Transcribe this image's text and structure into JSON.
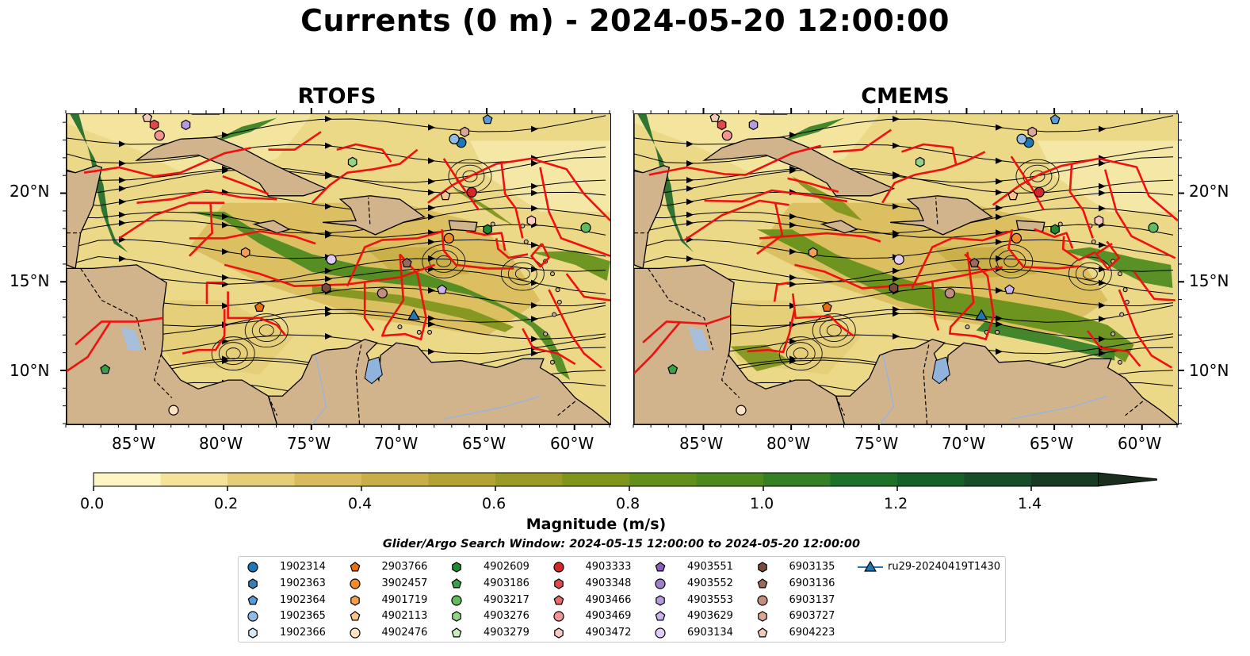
{
  "title": "Currents (0 m) - 2024-05-20 12:00:00",
  "panels": [
    {
      "title": "RTOFS"
    },
    {
      "title": "CMEMS"
    }
  ],
  "map_extent": {
    "lon": [
      -89,
      -58
    ],
    "lat": [
      7,
      24.5
    ]
  },
  "lat_ticks": [
    "20°N",
    "15°N",
    "10°N"
  ],
  "lon_ticks": [
    "85°W",
    "80°W",
    "75°W",
    "70°W",
    "65°W",
    "60°W"
  ],
  "colorbar": {
    "label": "Magnitude (m/s)",
    "min": 0.0,
    "max": 1.5,
    "extend": "max",
    "ticks": [
      "0.0",
      "0.2",
      "0.4",
      "0.6",
      "0.8",
      "1.0",
      "1.2",
      "1.4"
    ],
    "colors": [
      "#fdf6c3",
      "#f3e39b",
      "#e6cd78",
      "#d9bb5d",
      "#c9ad47",
      "#b3a335",
      "#9a9a26",
      "#7f951c",
      "#649019",
      "#4c8a1e",
      "#357f24",
      "#1f7028",
      "#16602b",
      "#174d28",
      "#183c23",
      "#1a2e1e"
    ]
  },
  "search_window": "Glider/Argo Search Window: 2024-05-15 12:00:00 to 2024-05-20 12:00:00",
  "legend": [
    {
      "label": "1902314",
      "shape": "circle",
      "color": "#1f77b4"
    },
    {
      "label": "1902363",
      "shape": "hexagon",
      "color": "#3a7db5"
    },
    {
      "label": "1902364",
      "shape": "pentagon",
      "color": "#5b9bd5"
    },
    {
      "label": "1902365",
      "shape": "circle",
      "color": "#8fbbe6"
    },
    {
      "label": "1902366",
      "shape": "hexagon",
      "color": "#d4e8f8"
    },
    {
      "label": "2903766",
      "shape": "pentagon",
      "color": "#e8700c"
    },
    {
      "label": "3902457",
      "shape": "circle",
      "color": "#f28a2e"
    },
    {
      "label": "4901719",
      "shape": "hexagon",
      "color": "#f6a04f"
    },
    {
      "label": "4902113",
      "shape": "pentagon",
      "color": "#f9c38f"
    },
    {
      "label": "4902476",
      "shape": "circle",
      "color": "#fde3c6"
    },
    {
      "label": "4902609",
      "shape": "hexagon",
      "color": "#1f8a2e"
    },
    {
      "label": "4903186",
      "shape": "pentagon",
      "color": "#3aa043"
    },
    {
      "label": "4903217",
      "shape": "circle",
      "color": "#62bb5c"
    },
    {
      "label": "4903276",
      "shape": "hexagon",
      "color": "#94d28a"
    },
    {
      "label": "4903279",
      "shape": "pentagon",
      "color": "#c9ecbf"
    },
    {
      "label": "4903333",
      "shape": "circle",
      "color": "#d62728"
    },
    {
      "label": "4903348",
      "shape": "hexagon",
      "color": "#e04a4a"
    },
    {
      "label": "4903466",
      "shape": "pentagon",
      "color": "#ea6b6b"
    },
    {
      "label": "4903469",
      "shape": "circle",
      "color": "#f39393"
    },
    {
      "label": "4903472",
      "shape": "hexagon",
      "color": "#f9c9c4"
    },
    {
      "label": "4903551",
      "shape": "pentagon",
      "color": "#8a5fb8"
    },
    {
      "label": "4903552",
      "shape": "circle",
      "color": "#a07fcb"
    },
    {
      "label": "4903553",
      "shape": "hexagon",
      "color": "#b79be0"
    },
    {
      "label": "4903629",
      "shape": "pentagon",
      "color": "#ccb5ee"
    },
    {
      "label": "6903134",
      "shape": "circle",
      "color": "#e2cdf6"
    },
    {
      "label": "6903135",
      "shape": "hexagon",
      "color": "#7a4a3a"
    },
    {
      "label": "6903136",
      "shape": "pentagon",
      "color": "#9c6a58"
    },
    {
      "label": "6903137",
      "shape": "circle",
      "color": "#c48e7f"
    },
    {
      "label": "6903727",
      "shape": "hexagon",
      "color": "#dba898"
    },
    {
      "label": "6904223",
      "shape": "pentagon",
      "color": "#f2cbb9"
    },
    {
      "label": "ru29-20240419T1430",
      "shape": "triangle-line",
      "color": "#1f77b4"
    }
  ],
  "markers": [
    {
      "id": "1902314",
      "lon": -66.5,
      "lat": 22.9,
      "shape": "circle",
      "color": "#1f77b4"
    },
    {
      "id": "1902365",
      "lon": -66.9,
      "lat": 23.1,
      "shape": "circle",
      "color": "#8fbbe6"
    },
    {
      "id": "1902364",
      "lon": -65.0,
      "lat": 24.2,
      "shape": "pentagon",
      "color": "#5b9bd5"
    },
    {
      "id": "6903727",
      "lon": -66.3,
      "lat": 23.5,
      "shape": "hexagon",
      "color": "#dba898"
    },
    {
      "id": "4903333",
      "lon": -65.9,
      "lat": 20.1,
      "shape": "circle",
      "color": "#d62728"
    },
    {
      "id": "4902113",
      "lon": -67.4,
      "lat": 19.9,
      "shape": "pentagon",
      "color": "#f9c38f"
    },
    {
      "id": "4902609",
      "lon": -65.0,
      "lat": 18.0,
      "shape": "hexagon",
      "color": "#1f8a2e"
    },
    {
      "id": "4903472",
      "lon": -62.5,
      "lat": 18.5,
      "shape": "hexagon",
      "color": "#f9c9c4"
    },
    {
      "id": "4903217",
      "lon": -59.4,
      "lat": 18.1,
      "shape": "circle",
      "color": "#62bb5c"
    },
    {
      "id": "3902457",
      "lon": -67.2,
      "lat": 17.5,
      "shape": "circle",
      "color": "#f28a2e"
    },
    {
      "id": "6903134",
      "lon": -73.9,
      "lat": 16.3,
      "shape": "circle",
      "color": "#e2cdf6"
    },
    {
      "id": "4901719",
      "lon": -78.8,
      "lat": 16.7,
      "shape": "hexagon",
      "color": "#f6a04f"
    },
    {
      "id": "6903135",
      "lon": -74.2,
      "lat": 14.7,
      "shape": "hexagon",
      "color": "#7a4a3a"
    },
    {
      "id": "6903136",
      "lon": -69.6,
      "lat": 16.1,
      "shape": "pentagon",
      "color": "#9c6a58"
    },
    {
      "id": "6903137",
      "lon": -71.0,
      "lat": 14.4,
      "shape": "circle",
      "color": "#c48e7f"
    },
    {
      "id": "4903629",
      "lon": -67.6,
      "lat": 14.6,
      "shape": "pentagon",
      "color": "#ccb5ee"
    },
    {
      "id": "2903766",
      "lon": -78.0,
      "lat": 13.6,
      "shape": "pentagon",
      "color": "#e8700c"
    },
    {
      "id": "4903276",
      "lon": -72.7,
      "lat": 21.8,
      "shape": "hexagon",
      "color": "#94d28a"
    },
    {
      "id": "4903186",
      "lon": -86.8,
      "lat": 10.1,
      "shape": "pentagon",
      "color": "#3aa043"
    },
    {
      "id": "4902476",
      "lon": -82.9,
      "lat": 7.8,
      "shape": "circle",
      "color": "#fde3c6"
    },
    {
      "id": "4903469",
      "lon": -83.7,
      "lat": 23.3,
      "shape": "circle",
      "color": "#f39393"
    },
    {
      "id": "4903348",
      "lon": -84.0,
      "lat": 23.9,
      "shape": "hexagon",
      "color": "#e04a4a"
    },
    {
      "id": "4903553",
      "lon": -82.2,
      "lat": 23.9,
      "shape": "hexagon",
      "color": "#b79be0"
    },
    {
      "id": "6904223",
      "lon": -84.4,
      "lat": 24.3,
      "shape": "pentagon",
      "color": "#f2cbb9"
    },
    {
      "id": "ru29-20240419T1430",
      "lon": -69.2,
      "lat": 13.1,
      "shape": "triangle",
      "color": "#1f77b4"
    }
  ]
}
